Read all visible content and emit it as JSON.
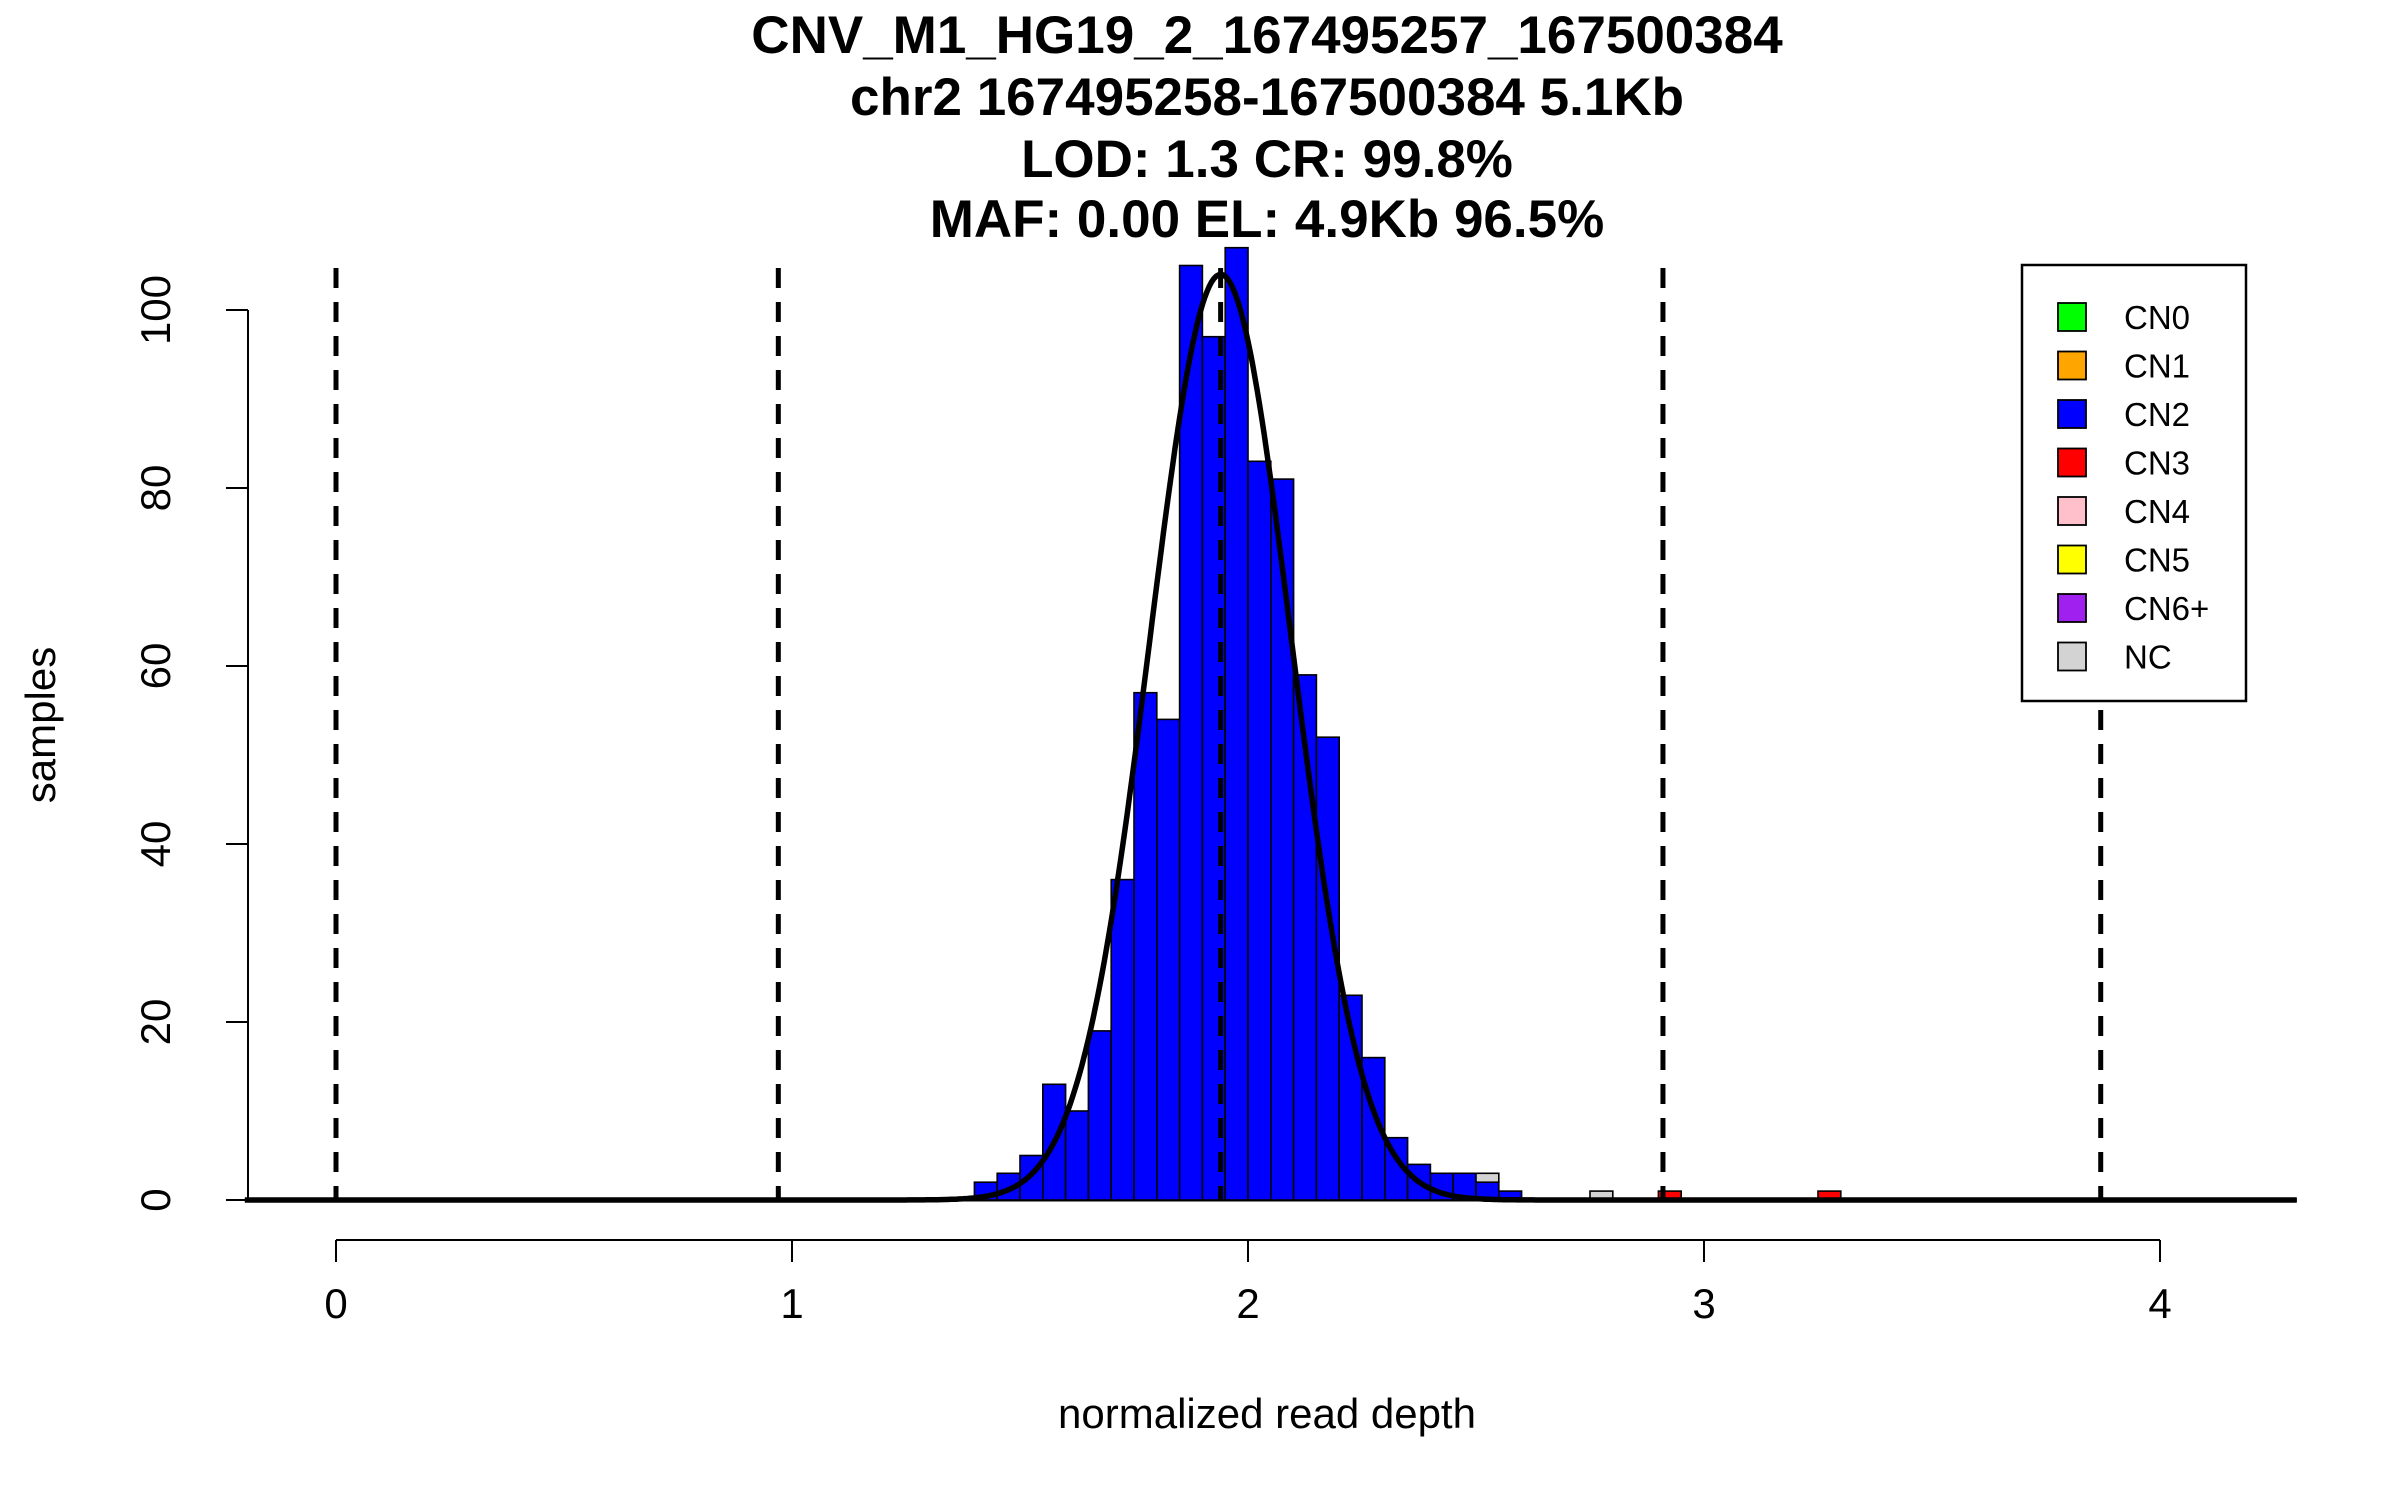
{
  "chart_data": {
    "type": "bar",
    "title_lines": [
      "CNV_M1_HG19_2_167495257_167500384",
      "chr2 167495258-167500384 5.1Kb",
      "LOD: 1.3 CR: 99.8%",
      "MAF: 0.00 EL: 4.9Kb 96.5%"
    ],
    "xlabel": "normalized read depth",
    "ylabel": "samples",
    "xlim": [
      -0.2,
      4.3
    ],
    "ylim": [
      0,
      105
    ],
    "xticks": [
      0,
      1,
      2,
      3,
      4
    ],
    "yticks": [
      0,
      20,
      40,
      60,
      80,
      100
    ],
    "bin_width": 0.05,
    "cutoffs": [
      0.0,
      0.97,
      1.94,
      2.91,
      3.87
    ],
    "legend": {
      "position": "top-right",
      "items": [
        {
          "label": "CN0",
          "color": "#00ff00"
        },
        {
          "label": "CN1",
          "color": "#ffa500"
        },
        {
          "label": "CN2",
          "color": "#0000ff"
        },
        {
          "label": "CN3",
          "color": "#ff0000"
        },
        {
          "label": "CN4",
          "color": "#ffc0cb"
        },
        {
          "label": "CN5",
          "color": "#ffff00"
        },
        {
          "label": "CN6+",
          "color": "#a020f0"
        },
        {
          "label": "NC",
          "color": "#d3d3d3"
        }
      ]
    },
    "series": [
      {
        "name": "CN2",
        "color": "#0000ff",
        "bins": [
          {
            "x": 1.4,
            "count": 2
          },
          {
            "x": 1.45,
            "count": 3
          },
          {
            "x": 1.5,
            "count": 5
          },
          {
            "x": 1.55,
            "count": 13
          },
          {
            "x": 1.6,
            "count": 10
          },
          {
            "x": 1.65,
            "count": 19
          },
          {
            "x": 1.7,
            "count": 36
          },
          {
            "x": 1.75,
            "count": 57
          },
          {
            "x": 1.8,
            "count": 54
          },
          {
            "x": 1.85,
            "count": 105
          },
          {
            "x": 1.9,
            "count": 97
          },
          {
            "x": 1.95,
            "count": 107
          },
          {
            "x": 2.0,
            "count": 83
          },
          {
            "x": 2.05,
            "count": 81
          },
          {
            "x": 2.1,
            "count": 59
          },
          {
            "x": 2.15,
            "count": 52
          },
          {
            "x": 2.2,
            "count": 23
          },
          {
            "x": 2.25,
            "count": 16
          },
          {
            "x": 2.3,
            "count": 7
          },
          {
            "x": 2.35,
            "count": 4
          },
          {
            "x": 2.4,
            "count": 3
          },
          {
            "x": 2.45,
            "count": 3
          },
          {
            "x": 2.5,
            "count": 2
          },
          {
            "x": 2.55,
            "count": 1
          }
        ]
      },
      {
        "name": "CN3",
        "color": "#ff0000",
        "bins": [
          {
            "x": 2.9,
            "count": 1
          },
          {
            "x": 3.25,
            "count": 1
          }
        ]
      },
      {
        "name": "NC",
        "color": "#d3d3d3",
        "bins": [
          {
            "x": 2.5,
            "count": 1,
            "stack_on": 2
          },
          {
            "x": 2.75,
            "count": 1
          }
        ]
      }
    ],
    "fit_curve": {
      "type": "normal",
      "mean": 1.94,
      "sd": 0.155,
      "peak": 104,
      "color": "#000000"
    }
  }
}
